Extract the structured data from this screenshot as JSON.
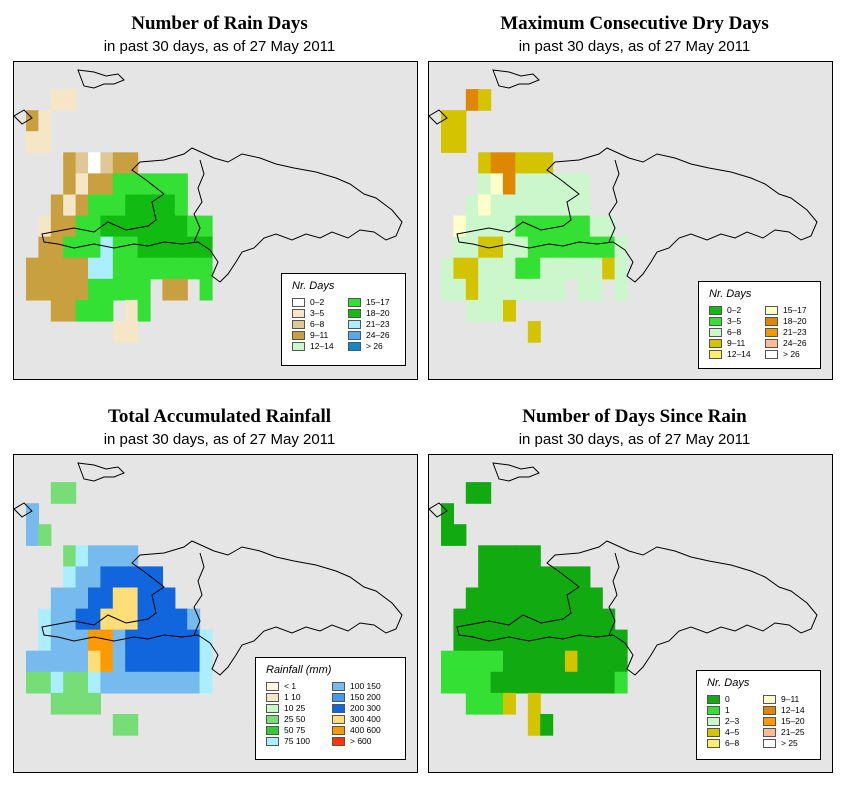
{
  "panels": [
    {
      "id": "rain-days",
      "title": "Number of Rain Days",
      "subtitle": "in past 30 days, as of  27 May 2011",
      "legend": {
        "title": "Nr. Days",
        "items": [
          {
            "label": "0–2",
            "color": "#ffffff"
          },
          {
            "label": "3–5",
            "color": "#f5e6c8"
          },
          {
            "label": "6–8",
            "color": "#e0c896"
          },
          {
            "label": "9–11",
            "color": "#c8a040"
          },
          {
            "label": "12–14",
            "color": "#ccf7cc"
          },
          {
            "label": "15–17",
            "color": "#33e033"
          },
          {
            "label": "18–20",
            "color": "#11bb11"
          },
          {
            "label": "21–23",
            "color": "#aaeeff"
          },
          {
            "label": "24–26",
            "color": "#55aaee"
          },
          {
            "label": "> 26",
            "color": "#1188cc"
          }
        ]
      },
      "grid": [
        "...............",
        "..tt...........",
        "bt.............",
        "tt.............",
        "...omwmoo......",
        "...otoogggggg..",
        "..otogggGGGGg..",
        ".tooggGGGGGGGgg",
        ".oogggcggGGGGGG",
        "oooooccgggggggg",
        "oooooggggg.oo.g",
        "..ooggg.tg.....",
        ".......tt......",
        "..............."
      ]
    },
    {
      "id": "dry-days",
      "title": "Maximum Consecutive Dry Days",
      "subtitle": "in past 30 days, as of  27 May 2011",
      "legend": {
        "title": "Nr. Days",
        "items": [
          {
            "label": "0–2",
            "color": "#11bb11"
          },
          {
            "label": "3–5",
            "color": "#33e033"
          },
          {
            "label": "6–8",
            "color": "#ccf7cc"
          },
          {
            "label": "9–11",
            "color": "#d4c400"
          },
          {
            "label": "12–14",
            "color": "#ffee66"
          },
          {
            "label": "15–17",
            "color": "#ffffcc"
          },
          {
            "label": "18–20",
            "color": "#dd8800"
          },
          {
            "label": "21–23",
            "color": "#ee9900"
          },
          {
            "label": "24–26",
            "color": "#ffbb99"
          },
          {
            "label": "> 26",
            "color": "#ffffff"
          }
        ]
      },
      "grid": [
        "...............",
        "..oy...........",
        "yy.............",
        "yy.............",
        "...yooddd......",
        "...gwogggggg...",
        "..gwgggggggg...",
        ".wggggGGGGGGgg.",
        ".ggddggGGGGGGGg",
        "gddgggGGgggggdg",
        "ggdggggggg.gg.g",
        "..gggd.........",
        ".......y.......",
        "..............."
      ]
    },
    {
      "id": "rainfall",
      "title": "Total Accumulated Rainfall",
      "subtitle": "in past 30 days, as of  27 May 2011",
      "legend": {
        "title": "Rainfall (mm)",
        "items": [
          {
            "label": "< 1",
            "color": "#fff5e6"
          },
          {
            "label": "1   10",
            "color": "#f5e6c8"
          },
          {
            "label": "10   25",
            "color": "#ccf7cc"
          },
          {
            "label": "25   50",
            "color": "#77dd77"
          },
          {
            "label": "50   75",
            "color": "#33cc33"
          },
          {
            "label": "75  100",
            "color": "#aaeeff"
          },
          {
            "label": "100  150",
            "color": "#77bbee"
          },
          {
            "label": "150  200",
            "color": "#4499ee"
          },
          {
            "label": "200  300",
            "color": "#1166dd"
          },
          {
            "label": "300  400",
            "color": "#ffdd77"
          },
          {
            "label": "400  600",
            "color": "#ff9900"
          },
          {
            "label": "> 600",
            "color": "#ff3300"
          }
        ]
      },
      "grid": [
        "...............",
        "..gg...........",
        "b..............",
        "bg.............",
        "...glbbbb......",
        "...lbbBBBBB....",
        "..bbbBByyBBB...",
        ".lbbBByyyBBBBb.",
        ".lbbboobBBBBBBl",
        "bbbbbyobBBBBBBl",
        "gglgglbbbbbbbbl",
        "..gggg.........",
        ".......gg......",
        "..............."
      ]
    },
    {
      "id": "days-since-rain",
      "title": "Number of Days Since Rain",
      "subtitle": "in past 30 days, as of  27 May 2011",
      "legend": {
        "title": "Nr. Days",
        "items": [
          {
            "label": "0",
            "color": "#11aa11"
          },
          {
            "label": "1",
            "color": "#33e033"
          },
          {
            "label": "2–3",
            "color": "#ccf7cc"
          },
          {
            "label": "4–5",
            "color": "#d4c400"
          },
          {
            "label": "6–8",
            "color": "#ffee66"
          },
          {
            "label": "9–11",
            "color": "#ffffcc"
          },
          {
            "label": "12–14",
            "color": "#dd8800"
          },
          {
            "label": "15–20",
            "color": "#ff9900"
          },
          {
            "label": "21–25",
            "color": "#ffbb99"
          },
          {
            "label": "> 25",
            "color": "#ffffff"
          }
        ]
      },
      "grid": [
        "...............",
        "..GG...........",
        "G..............",
        "GG.............",
        "...GGGGG.......",
        "...GGGGGGGGG...",
        "..GGGGGGGGGGG..",
        ".GGGGGGGGGGGGG.",
        ".GGGGGGGGGGGGGG",
        "gggggGGGGGdGGGG",
        "ggggGGGGGGGGGGg",
        "..gggd.d.......",
        ".......dG......",
        "..............."
      ]
    }
  ]
}
